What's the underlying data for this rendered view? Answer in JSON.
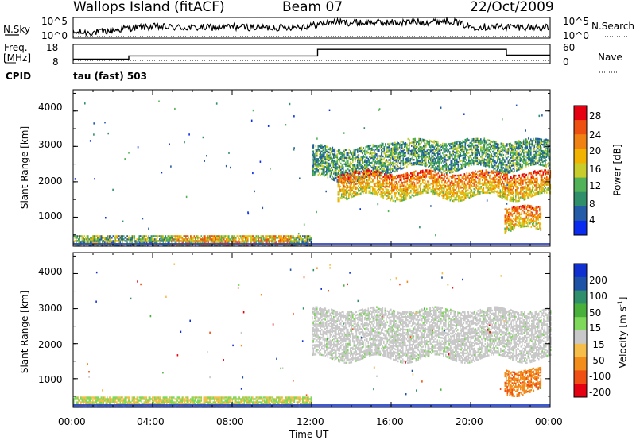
{
  "header": {
    "station": "Wallops Island (fitACF)",
    "beam": "Beam 07",
    "date": "22/Oct/2009"
  },
  "top_panels": {
    "nsky_label": "N.Sky",
    "nsky_ticks": [
      "10^5",
      "10^0"
    ],
    "nsearch_label": "N.Search",
    "freq_label_lines": [
      "Freq.",
      "[MHz]"
    ],
    "freq_ticks": [
      "18",
      "8"
    ],
    "nave_label": "Nave",
    "nave_ticks": [
      "60",
      "0"
    ],
    "cpid_label": "CPID",
    "cpid_value": "tau (fast) 503"
  },
  "colors": {
    "power_scale": [
      "#0a2cf0",
      "#245ca8",
      "#2f8f6a",
      "#52b258",
      "#c8cd2c",
      "#f2b300",
      "#f08214",
      "#ee5012",
      "#e50012"
    ],
    "velocity_scale": [
      "#e50012",
      "#f05014",
      "#f28c1a",
      "#f5bd4a",
      "#c8c8c8",
      "#7ed85a",
      "#4ab03c",
      "#2f8f6a",
      "#1e52a6",
      "#1030d0"
    ]
  },
  "chart_data": [
    {
      "type": "line",
      "title": "",
      "ylabel": "N.Sky",
      "scale": "log",
      "y_ticks": [
        "10^0",
        "10^5"
      ],
      "series": [
        {
          "name": "N.Sky",
          "x_hours": [
            0,
            1.5,
            2.8,
            4,
            6,
            8,
            10,
            12,
            13,
            14,
            16,
            18,
            19,
            20,
            22,
            24
          ],
          "level": [
            0.25,
            0.3,
            0.5,
            0.55,
            0.5,
            0.55,
            0.5,
            0.6,
            0.8,
            0.75,
            0.75,
            0.8,
            0.85,
            0.55,
            0.55,
            0.5
          ]
        },
        {
          "name": "N.Search",
          "x_hours": [
            0,
            24
          ],
          "level": [
            0.05,
            0.05
          ]
        }
      ]
    },
    {
      "type": "line",
      "title": "",
      "ylabel": "Freq. [MHz]",
      "y_ticks": [
        "8",
        "18"
      ],
      "y2label": "Nave",
      "y2_ticks": [
        "0",
        "60"
      ],
      "series": [
        {
          "name": "Freq.",
          "x_hours": [
            0,
            2.8,
            2.8,
            12.3,
            12.3,
            21.8,
            21.8,
            24
          ],
          "values": [
            10.3,
            10.3,
            12,
            12,
            15.4,
            15.4,
            12.4,
            12.4
          ]
        },
        {
          "name": "Nave",
          "x_hours": [
            0,
            24
          ],
          "values": [
            10,
            10
          ]
        }
      ]
    },
    {
      "type": "heatmap",
      "title": "",
      "xlabel": "",
      "ylabel": "Slant Range [km]",
      "xlim": [
        0,
        24
      ],
      "ylim": [
        180,
        4600
      ],
      "y_ticks": [
        1000,
        2000,
        3000,
        4000
      ],
      "colorbar": {
        "label": "Power [dB]",
        "ticks": [
          4,
          8,
          12,
          16,
          20,
          24,
          28
        ],
        "range": [
          0,
          30
        ]
      },
      "echo_regions": [
        {
          "t_start": 0,
          "t_end": 12,
          "r_min": 220,
          "r_max": 520,
          "level": "low-mid"
        },
        {
          "t_start": 12,
          "t_end": 15.5,
          "r_min": 2100,
          "r_max": 3000,
          "level": "mid"
        },
        {
          "t_start": 13.3,
          "t_end": 24,
          "r_min": 1600,
          "r_max": 2300,
          "level": "high"
        },
        {
          "t_start": 15.5,
          "t_end": 24,
          "r_min": 2400,
          "r_max": 3200,
          "level": "mid"
        },
        {
          "t_start": 21.7,
          "t_end": 23.5,
          "r_min": 650,
          "r_max": 1300,
          "level": "high"
        }
      ]
    },
    {
      "type": "heatmap",
      "title": "",
      "xlabel": "Time UT",
      "ylabel": "Slant Range [km]",
      "xlim": [
        0,
        24
      ],
      "ylim": [
        180,
        4600
      ],
      "x_ticks": [
        "00:00",
        "04:00",
        "08:00",
        "12:00",
        "16:00",
        "20:00",
        "00:00"
      ],
      "y_ticks": [
        1000,
        2000,
        3000,
        4000
      ],
      "colorbar": {
        "label": "Velocity [m s^-1]",
        "ticks": [
          -200,
          -100,
          -50,
          -15,
          15,
          50,
          100,
          200
        ]
      },
      "echo_regions": [
        {
          "t_start": 0,
          "t_end": 12,
          "r_min": 220,
          "r_max": 520,
          "level": "slow (green/orange)"
        },
        {
          "t_start": 12,
          "t_end": 24,
          "r_min": 1600,
          "r_max": 3000,
          "level": "ground scatter (grey)"
        },
        {
          "t_start": 21.7,
          "t_end": 23.5,
          "r_min": 650,
          "r_max": 1300,
          "level": "-50 to -100 (orange)"
        }
      ]
    }
  ],
  "power_cbar": {
    "label": "Power [dB]",
    "ticks": [
      "4",
      "8",
      "12",
      "16",
      "20",
      "24",
      "28"
    ]
  },
  "velocity_cbar": {
    "label_main": "Velocity [m s",
    "label_sup": "-1",
    "label_end": "]",
    "ticks": [
      "200",
      "100",
      "50",
      "15",
      "-15",
      "-50",
      "-100",
      "-200"
    ]
  },
  "axes": {
    "ylabel": "Slant Range [km]",
    "y_ticks": [
      "1000",
      "2000",
      "3000",
      "4000"
    ],
    "x_ticks": [
      "00:00",
      "04:00",
      "08:00",
      "12:00",
      "16:00",
      "20:00",
      "00:00"
    ],
    "xlabel": "Time UT"
  }
}
